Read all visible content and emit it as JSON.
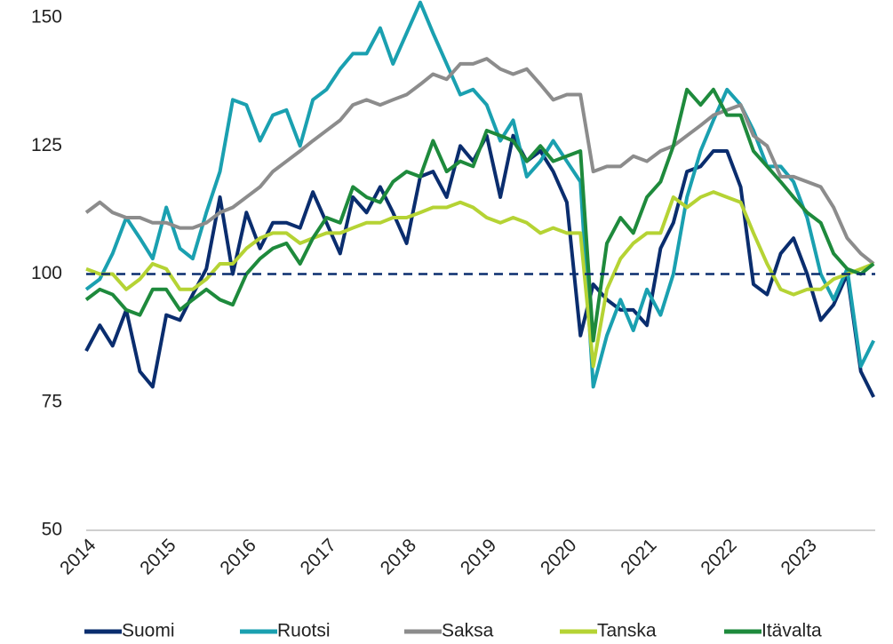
{
  "chart_data": {
    "type": "line",
    "x": [
      2014,
      2014.17,
      2014.33,
      2014.5,
      2014.67,
      2014.83,
      2015,
      2015.17,
      2015.33,
      2015.5,
      2015.67,
      2015.83,
      2016,
      2016.17,
      2016.33,
      2016.5,
      2016.67,
      2016.83,
      2017,
      2017.17,
      2017.33,
      2017.5,
      2017.67,
      2017.83,
      2018,
      2018.17,
      2018.33,
      2018.5,
      2018.67,
      2018.83,
      2019,
      2019.17,
      2019.33,
      2019.5,
      2019.67,
      2019.83,
      2020,
      2020.17,
      2020.33,
      2020.5,
      2020.67,
      2020.83,
      2021,
      2021.17,
      2021.33,
      2021.5,
      2021.67,
      2021.83,
      2022,
      2022.17,
      2022.33,
      2022.5,
      2022.67,
      2022.83,
      2023,
      2023.17,
      2023.33,
      2023.5,
      2023.67,
      2023.83
    ],
    "series": [
      {
        "name": "Suomi",
        "color": "#0a2d6e",
        "values": [
          85,
          90,
          86,
          93,
          81,
          78,
          92,
          91,
          96,
          101,
          115,
          100,
          112,
          105,
          110,
          110,
          109,
          116,
          110,
          104,
          115,
          112,
          117,
          112,
          106,
          119,
          120,
          115,
          125,
          122,
          127,
          115,
          127,
          122,
          124,
          120,
          114,
          88,
          98,
          95,
          93,
          93,
          90,
          105,
          110,
          120,
          121,
          124,
          124,
          117,
          98,
          96,
          104,
          107,
          100,
          91,
          94,
          100,
          81,
          76
        ]
      },
      {
        "name": "Ruotsi",
        "color": "#1aa0b0",
        "values": [
          97,
          99,
          104,
          111,
          107,
          103,
          113,
          105,
          103,
          112,
          120,
          134,
          133,
          126,
          131,
          132,
          125,
          134,
          136,
          140,
          143,
          143,
          148,
          141,
          147,
          153,
          147,
          141,
          135,
          136,
          133,
          126,
          130,
          119,
          122,
          126,
          122,
          118,
          78,
          88,
          95,
          89,
          97,
          92,
          100,
          115,
          124,
          130,
          136,
          133,
          128,
          121,
          121,
          118,
          111,
          100,
          95,
          101,
          82,
          87
        ]
      },
      {
        "name": "Saksa",
        "color": "#8c8c8c",
        "values": [
          112,
          114,
          112,
          111,
          111,
          110,
          110,
          109,
          109,
          110,
          112,
          113,
          115,
          117,
          120,
          122,
          124,
          126,
          128,
          130,
          133,
          134,
          133,
          134,
          135,
          137,
          139,
          138,
          141,
          141,
          142,
          140,
          139,
          140,
          137,
          134,
          135,
          135,
          120,
          121,
          121,
          123,
          122,
          124,
          125,
          127,
          129,
          131,
          132,
          133,
          127,
          125,
          119,
          119,
          118,
          117,
          113,
          107,
          104,
          102
        ]
      },
      {
        "name": "Tanska",
        "color": "#b5d334",
        "values": [
          101,
          100,
          100,
          97,
          99,
          102,
          101,
          97,
          97,
          99,
          102,
          102,
          105,
          107,
          108,
          108,
          106,
          107,
          108,
          108,
          109,
          110,
          110,
          111,
          111,
          112,
          113,
          113,
          114,
          113,
          111,
          110,
          111,
          110,
          108,
          109,
          108,
          108,
          82,
          97,
          103,
          106,
          108,
          108,
          115,
          113,
          115,
          116,
          115,
          114,
          108,
          102,
          97,
          96,
          97,
          97,
          99,
          100,
          101,
          102
        ]
      },
      {
        "name": "Itävalta",
        "color": "#1e8a3c",
        "values": [
          95,
          97,
          96,
          93,
          92,
          97,
          97,
          93,
          95,
          97,
          95,
          94,
          100,
          103,
          105,
          106,
          102,
          107,
          111,
          110,
          117,
          115,
          114,
          118,
          120,
          119,
          126,
          120,
          122,
          121,
          128,
          127,
          126,
          122,
          125,
          122,
          123,
          124,
          87,
          106,
          111,
          108,
          115,
          118,
          125,
          136,
          133,
          136,
          131,
          131,
          124,
          121,
          118,
          115,
          112,
          110,
          104,
          101,
          100,
          102
        ]
      }
    ],
    "xlim": [
      2014,
      2023.85
    ],
    "xticks": [
      2014,
      2015,
      2016,
      2017,
      2018,
      2019,
      2020,
      2021,
      2022,
      2023
    ],
    "ylim": [
      50,
      150
    ],
    "yticks": [
      50,
      75,
      100,
      125,
      150
    ],
    "reference_line": 100,
    "grid": false,
    "legend": "bottom"
  }
}
